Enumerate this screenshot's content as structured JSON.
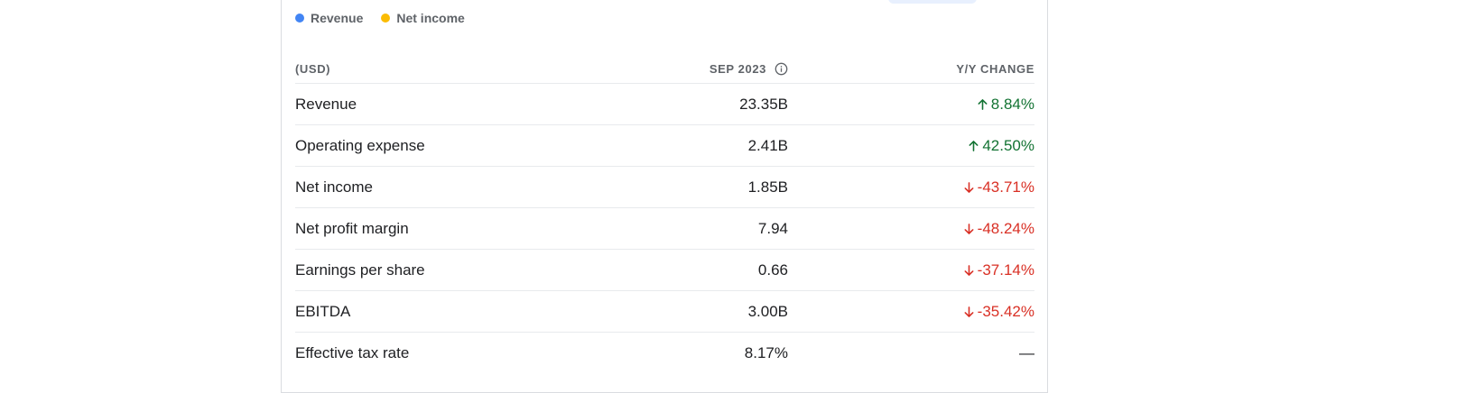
{
  "legend": {
    "items": [
      {
        "label": "Revenue",
        "color": "#4285f4"
      },
      {
        "label": "Net income",
        "color": "#fbbc04"
      }
    ]
  },
  "table": {
    "headers": {
      "label": "(USD)",
      "value": "SEP 2023",
      "change": "Y/Y CHANGE"
    },
    "rows": [
      {
        "label": "Revenue",
        "value": "23.35B",
        "change": "8.84%",
        "direction": "up"
      },
      {
        "label": "Operating expense",
        "value": "2.41B",
        "change": "42.50%",
        "direction": "up"
      },
      {
        "label": "Net income",
        "value": "1.85B",
        "change": "-43.71%",
        "direction": "down"
      },
      {
        "label": "Net profit margin",
        "value": "7.94",
        "change": "-48.24%",
        "direction": "down"
      },
      {
        "label": "Earnings per share",
        "value": "0.66",
        "change": "-37.14%",
        "direction": "down"
      },
      {
        "label": "EBITDA",
        "value": "3.00B",
        "change": "-35.42%",
        "direction": "down"
      },
      {
        "label": "Effective tax rate",
        "value": "8.17%",
        "change": "—",
        "direction": "none"
      }
    ]
  },
  "colors": {
    "up": "#137333",
    "down": "#d93025",
    "revenue": "#4285f4",
    "net_income": "#fbbc04"
  },
  "icons": {
    "info": "info-icon",
    "up": "arrow-up-icon",
    "down": "arrow-down-icon"
  }
}
